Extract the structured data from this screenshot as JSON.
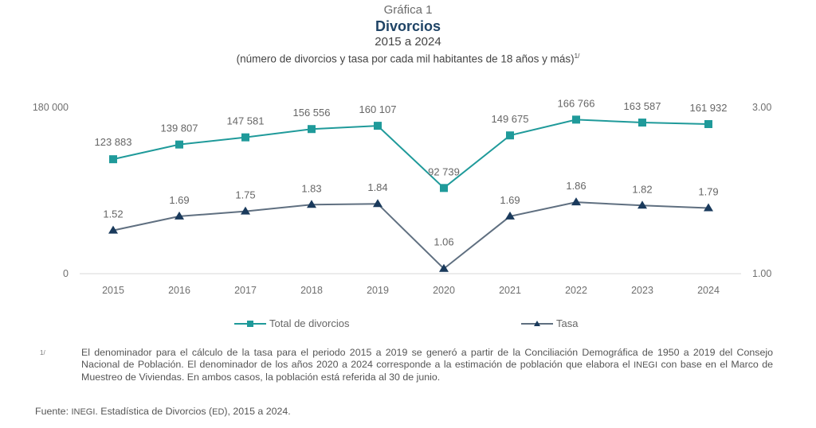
{
  "header": {
    "kicker": "Gráfica 1",
    "title": "Divorcios",
    "period": "2015 a 2024",
    "units": "(número de divorcios y tasa por cada mil habitantes de 18 años y más)",
    "units_note_mark": "1/"
  },
  "chart_data": {
    "type": "line",
    "title": "Divorcios",
    "subtitle": "2015 a 2024",
    "categories": [
      "2015",
      "2016",
      "2017",
      "2018",
      "2019",
      "2020",
      "2021",
      "2022",
      "2023",
      "2024"
    ],
    "series": [
      {
        "name": "Total de divorcios",
        "axis": "left",
        "marker": "square",
        "color": "#1f9a9a",
        "values": [
          123883,
          139807,
          147581,
          156556,
          160107,
          92739,
          149675,
          166766,
          163587,
          161932
        ],
        "labels": [
          "123 883",
          "139 807",
          "147 581",
          "156 556",
          "160 107",
          "92 739",
          "149 675",
          "166 766",
          "163 587",
          "161 932"
        ]
      },
      {
        "name": "Tasa",
        "axis": "right",
        "marker": "triangle",
        "color": "#1a3a5c",
        "line_color": "#5f6f80",
        "values": [
          1.52,
          1.69,
          1.75,
          1.83,
          1.84,
          1.06,
          1.69,
          1.86,
          1.82,
          1.79
        ],
        "labels": [
          "1.52",
          "1.69",
          "1.75",
          "1.83",
          "1.84",
          "1.06",
          "1.69",
          "1.86",
          "1.82",
          "1.79"
        ]
      }
    ],
    "y_left": {
      "range": [
        0,
        180000
      ],
      "tick_labels": [
        "0",
        "180 000"
      ]
    },
    "y_right": {
      "range": [
        1.0,
        3.0
      ],
      "tick_labels": [
        "1.00",
        "3.00"
      ]
    },
    "grid": false,
    "legend": "bottom"
  },
  "legend": {
    "items": [
      {
        "label": "Total de divorcios"
      },
      {
        "label": "Tasa"
      }
    ]
  },
  "footnote": {
    "mark": "1/",
    "text_a": "El denominador para el cálculo de la tasa para el periodo 2015 a 2019 se generó a partir de la Conciliación Demográfica de 1950 a 2019 del Consejo Nacional de Población. El denominador de los años 2020 a 2024 corresponde a la estimación de población que elabora el ",
    "org": "INEGI",
    "text_b": " con base en el Marco de Muestreo de Viviendas. En ambos casos, la población está referida al 30 de junio."
  },
  "source": {
    "prefix": "Fuente: ",
    "org": "INEGI",
    "text_a": ". Estadística de Divorcios (",
    "abbr": "ED",
    "text_b": "), 2015 a 2024."
  }
}
